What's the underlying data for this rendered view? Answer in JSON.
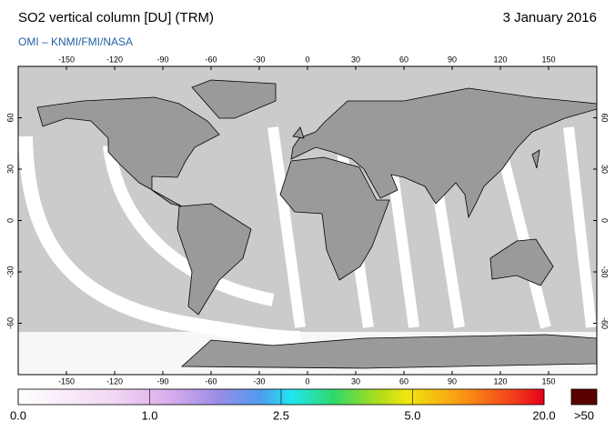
{
  "header": {
    "title": "SO2 vertical column [DU] (TRM)",
    "date": "3 January 2016",
    "source": "OMI  –  KNMI/FMI/NASA"
  },
  "map": {
    "lon_ticks": [
      -150,
      -120,
      -90,
      -60,
      -30,
      0,
      30,
      60,
      90,
      120,
      150
    ],
    "lat_ticks": [
      60,
      30,
      0,
      -30,
      -60
    ]
  },
  "colorbar": {
    "labels": [
      "0.0",
      "1.0",
      "2.5",
      "5.0",
      "20.0"
    ],
    "overflow_label": ">50"
  }
}
